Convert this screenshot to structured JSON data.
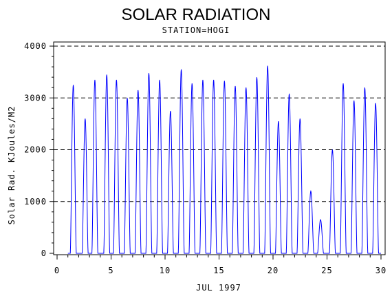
{
  "chart_data": {
    "type": "line",
    "title": "SOLAR RADIATION",
    "subtitle": "STATION=HOGI",
    "xlabel": "JUL 1997",
    "ylabel": "Solar Rad. KJoules/M2",
    "xlim": [
      0,
      30
    ],
    "ylim": [
      0,
      4000
    ],
    "x_ticks": [
      0,
      5,
      10,
      15,
      20,
      25,
      30
    ],
    "y_ticks": [
      0,
      1000,
      2000,
      3000,
      4000
    ],
    "y_tick_labels": [
      "0",
      "1000",
      "2000",
      "3000",
      "4000"
    ],
    "grid": "horizontal dashed at 1000, 2000, 3000, 4000",
    "line_color": "#0000ff",
    "series": [
      {
        "daily_peaks": [
          {
            "day": 1,
            "x": 1.5,
            "peak": 3250
          },
          {
            "day": 2,
            "x": 2.6,
            "peak": 2600
          },
          {
            "day": 3,
            "x": 3.5,
            "peak": 3350
          },
          {
            "day": 4,
            "x": 4.6,
            "peak": 3450
          },
          {
            "day": 5,
            "x": 5.5,
            "peak": 3350
          },
          {
            "day": 6,
            "x": 6.5,
            "peak": 3000
          },
          {
            "day": 7,
            "x": 7.5,
            "peak": 3150
          },
          {
            "day": 8,
            "x": 8.5,
            "peak": 3480
          },
          {
            "day": 9,
            "x": 9.5,
            "peak": 3350
          },
          {
            "day": 10,
            "x": 10.5,
            "peak": 2750
          },
          {
            "day": 11,
            "x": 11.5,
            "peak": 3550
          },
          {
            "day": 12,
            "x": 12.5,
            "peak": 3280
          },
          {
            "day": 13,
            "x": 13.5,
            "peak": 3350
          },
          {
            "day": 14,
            "x": 14.5,
            "peak": 3350
          },
          {
            "day": 15,
            "x": 15.5,
            "peak": 3330
          },
          {
            "day": 16,
            "x": 16.5,
            "peak": 3230
          },
          {
            "day": 17,
            "x": 17.5,
            "peak": 3200
          },
          {
            "day": 18,
            "x": 18.5,
            "peak": 3400
          },
          {
            "day": 19,
            "x": 19.5,
            "peak": 3620
          },
          {
            "day": 20,
            "x": 20.5,
            "peak": 2550
          },
          {
            "day": 21,
            "x": 21.5,
            "peak": 3080
          },
          {
            "day": 22,
            "x": 22.5,
            "peak": 2600
          },
          {
            "day": 23,
            "x": 23.5,
            "peak": 1200
          },
          {
            "day": 24,
            "x": 24.4,
            "peak": 650
          },
          {
            "day": 25,
            "x": 25.5,
            "peak": 2000
          },
          {
            "day": 26,
            "x": 26.5,
            "peak": 3280
          },
          {
            "day": 27,
            "x": 27.5,
            "peak": 2950
          },
          {
            "day": 28,
            "x": 28.5,
            "peak": 3200
          },
          {
            "day": 29,
            "x": 29.5,
            "peak": 2900
          }
        ]
      }
    ]
  }
}
